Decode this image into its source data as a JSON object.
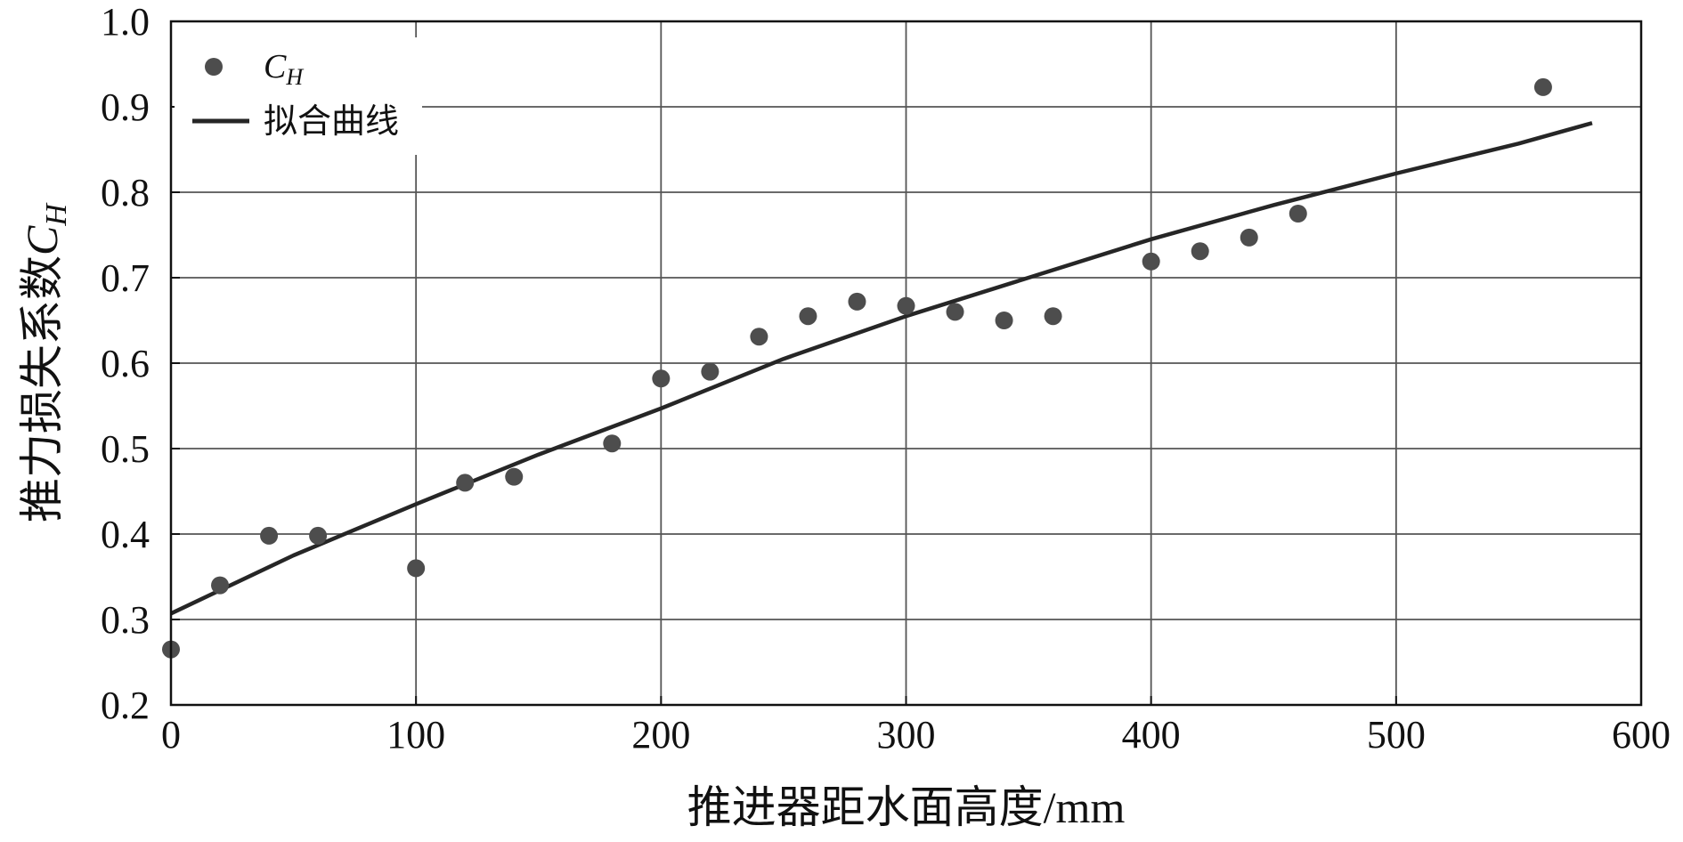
{
  "chart_data": {
    "type": "scatter",
    "xlabel": "推进器距水面高度/mm",
    "ylabel_text": "推力损失系数",
    "ylabel_symbol": "C",
    "ylabel_sub": "H",
    "xlim": [
      0,
      600
    ],
    "ylim": [
      0.2,
      1.0
    ],
    "x_ticks": [
      0,
      100,
      200,
      300,
      400,
      500,
      600
    ],
    "x_tick_labels": [
      "0",
      "100",
      "200",
      "300",
      "400",
      "500",
      "600"
    ],
    "y_ticks": [
      0.2,
      0.3,
      0.4,
      0.5,
      0.6,
      0.7,
      0.8,
      0.9,
      1.0
    ],
    "y_tick_labels": [
      "0.2",
      "0.3",
      "0.4",
      "0.5",
      "0.6",
      "0.7",
      "0.8",
      "0.9",
      "1.0"
    ],
    "grid": true,
    "legend_position": "top-left",
    "series": [
      {
        "name": "CH",
        "name_main": "C",
        "name_sub": "H",
        "kind": "scatter",
        "color": "#4d4d4d",
        "x": [
          0,
          20,
          40,
          60,
          100,
          120,
          140,
          180,
          200,
          220,
          240,
          260,
          280,
          300,
          320,
          340,
          360,
          400,
          420,
          440,
          460,
          560
        ],
        "y": [
          0.265,
          0.34,
          0.398,
          0.398,
          0.36,
          0.46,
          0.467,
          0.506,
          0.582,
          0.59,
          0.631,
          0.655,
          0.672,
          0.667,
          0.66,
          0.65,
          0.655,
          0.719,
          0.731,
          0.747,
          0.775,
          0.923
        ]
      },
      {
        "name": "拟合曲线",
        "kind": "line",
        "color": "#262626",
        "x": [
          0,
          50,
          100,
          150,
          200,
          250,
          300,
          350,
          400,
          450,
          500,
          550,
          580
        ],
        "y": [
          0.307,
          0.375,
          0.435,
          0.493,
          0.547,
          0.605,
          0.655,
          0.7,
          0.745,
          0.785,
          0.822,
          0.857,
          0.881
        ]
      }
    ]
  }
}
